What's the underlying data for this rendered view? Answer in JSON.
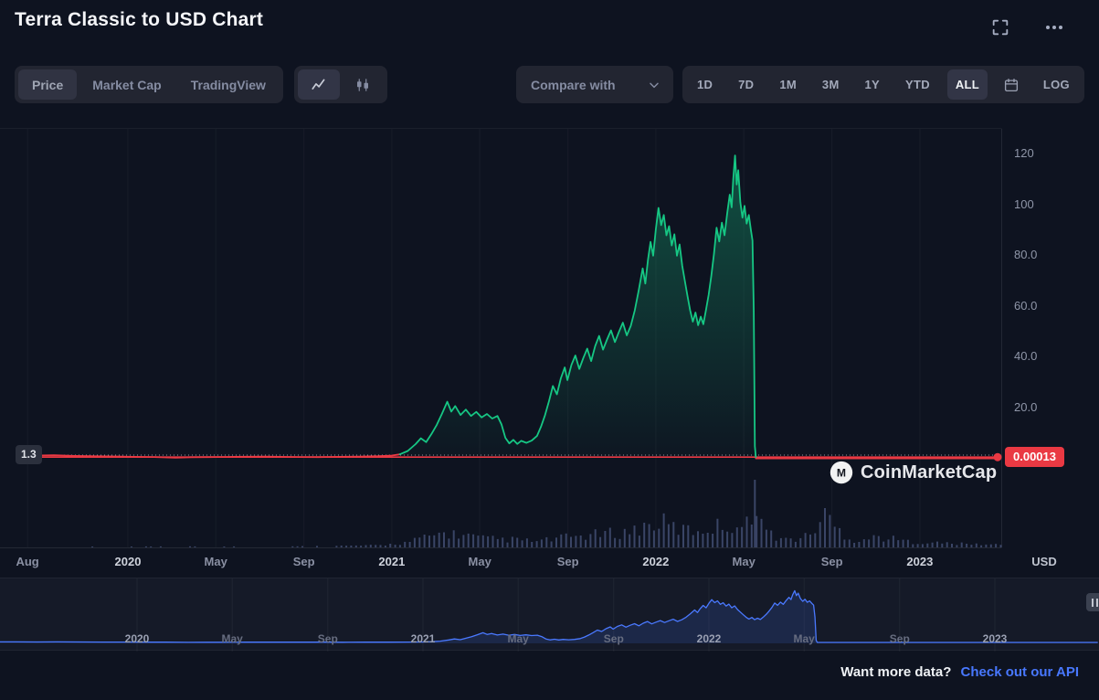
{
  "header": {
    "title": "Terra Classic to USD Chart"
  },
  "toolbar": {
    "view_tabs": [
      {
        "label": "Price",
        "active": true
      },
      {
        "label": "Market Cap",
        "active": false
      },
      {
        "label": "TradingView",
        "active": false
      }
    ],
    "chart_types": [
      {
        "name": "line",
        "active": true
      },
      {
        "name": "candlestick",
        "active": false
      }
    ],
    "compare_label": "Compare with",
    "ranges": [
      {
        "label": "1D",
        "active": false
      },
      {
        "label": "7D",
        "active": false
      },
      {
        "label": "1M",
        "active": false
      },
      {
        "label": "3M",
        "active": false
      },
      {
        "label": "1Y",
        "active": false
      },
      {
        "label": "YTD",
        "active": false
      },
      {
        "label": "ALL",
        "active": true
      }
    ],
    "log_label": "LOG"
  },
  "chart": {
    "unit_label": "USD",
    "start_label": "1.3",
    "price_label": "0.00013",
    "watermark": "CoinMarketCap",
    "y_axis": {
      "ticks": [
        {
          "v": 120,
          "label": "120"
        },
        {
          "v": 100,
          "label": "100"
        },
        {
          "v": 80,
          "label": "80.0"
        },
        {
          "v": 60,
          "label": "60.0"
        },
        {
          "v": 40,
          "label": "40.0"
        },
        {
          "v": 20,
          "label": "20.0"
        }
      ]
    },
    "x_axis": {
      "ticks": [
        {
          "t": 2019.62,
          "label": "Aug",
          "kind": "month"
        },
        {
          "t": 2020.0,
          "label": "2020",
          "kind": "year"
        },
        {
          "t": 2020.333,
          "label": "May",
          "kind": "month"
        },
        {
          "t": 2020.667,
          "label": "Sep",
          "kind": "month"
        },
        {
          "t": 2021.0,
          "label": "2021",
          "kind": "year"
        },
        {
          "t": 2021.333,
          "label": "May",
          "kind": "month"
        },
        {
          "t": 2021.667,
          "label": "Sep",
          "kind": "month"
        },
        {
          "t": 2022.0,
          "label": "2022",
          "kind": "year"
        },
        {
          "t": 2022.333,
          "label": "May",
          "kind": "month"
        },
        {
          "t": 2022.667,
          "label": "Sep",
          "kind": "month"
        },
        {
          "t": 2023.0,
          "label": "2023",
          "kind": "year"
        }
      ]
    }
  },
  "navigator": {
    "ticks": [
      {
        "t": 2020.0,
        "label": "2020",
        "kind": "year"
      },
      {
        "t": 2020.333,
        "label": "May",
        "kind": "month"
      },
      {
        "t": 2020.667,
        "label": "Sep",
        "kind": "month"
      },
      {
        "t": 2021.0,
        "label": "2021",
        "kind": "year"
      },
      {
        "t": 2021.333,
        "label": "May",
        "kind": "month"
      },
      {
        "t": 2021.667,
        "label": "Sep",
        "kind": "month"
      },
      {
        "t": 2022.0,
        "label": "2022",
        "kind": "year"
      },
      {
        "t": 2022.333,
        "label": "May",
        "kind": "month"
      },
      {
        "t": 2022.667,
        "label": "Sep",
        "kind": "month"
      },
      {
        "t": 2023.0,
        "label": "2023",
        "kind": "year"
      }
    ]
  },
  "footer": {
    "prompt": "Want more data?",
    "link": "Check out our API"
  },
  "icons": {
    "fullscreen": "fullscreen-expand-icon",
    "more": "ellipsis-icon",
    "line_chart": "line-chart-icon",
    "candlestick": "candlestick-chart-icon",
    "chevron": "chevron-down-icon",
    "calendar": "calendar-icon",
    "logo": "coinmarketcap-logo-icon",
    "nav_handle": "drag-handle-icon"
  },
  "chart_data": {
    "type": "line",
    "title": "Terra Classic to USD Chart",
    "ylabel": "USD",
    "x_unit": "decimal_year",
    "x_domain": [
      2019.578,
      2023.31
    ],
    "y_ticks": [
      20,
      40,
      60,
      80,
      100,
      120
    ],
    "start_value": 1.3,
    "current_value": 0.00013,
    "legend": "off",
    "grid": "faint-vertical",
    "colors": {
      "up": "#16c784",
      "down": "#ea3943",
      "volume": "#3a4566",
      "navigator": "#4a79ff"
    },
    "series": [
      {
        "name": "Terra Classic price (USD)",
        "points": [
          [
            2019.578,
            1.3
          ],
          [
            2019.65,
            1.12
          ],
          [
            2019.72,
            1.22
          ],
          [
            2019.8,
            0.98
          ],
          [
            2019.88,
            0.84
          ],
          [
            2019.95,
            0.74
          ],
          [
            2020.02,
            0.62
          ],
          [
            2020.1,
            0.54
          ],
          [
            2020.18,
            0.3
          ],
          [
            2020.24,
            0.46
          ],
          [
            2020.3,
            0.52
          ],
          [
            2020.38,
            0.58
          ],
          [
            2020.45,
            0.66
          ],
          [
            2020.52,
            0.72
          ],
          [
            2020.58,
            0.62
          ],
          [
            2020.65,
            0.55
          ],
          [
            2020.72,
            0.51
          ],
          [
            2020.8,
            0.62
          ],
          [
            2020.88,
            0.7
          ],
          [
            2020.95,
            0.86
          ],
          [
            2021.0,
            1.1
          ],
          [
            2021.03,
            1.6
          ],
          [
            2021.06,
            2.9
          ],
          [
            2021.09,
            5.6
          ],
          [
            2021.11,
            7.9
          ],
          [
            2021.13,
            6.4
          ],
          [
            2021.15,
            9.6
          ],
          [
            2021.17,
            13.2
          ],
          [
            2021.19,
            17.6
          ],
          [
            2021.21,
            22.3
          ],
          [
            2021.225,
            18.4
          ],
          [
            2021.24,
            20.6
          ],
          [
            2021.26,
            17.1
          ],
          [
            2021.28,
            19.2
          ],
          [
            2021.3,
            16.7
          ],
          [
            2021.32,
            18.3
          ],
          [
            2021.34,
            16.1
          ],
          [
            2021.36,
            17.5
          ],
          [
            2021.38,
            15.7
          ],
          [
            2021.4,
            16.7
          ],
          [
            2021.415,
            13.4
          ],
          [
            2021.43,
            8.1
          ],
          [
            2021.445,
            5.9
          ],
          [
            2021.46,
            7.3
          ],
          [
            2021.475,
            5.7
          ],
          [
            2021.49,
            6.9
          ],
          [
            2021.51,
            6.1
          ],
          [
            2021.53,
            7.0
          ],
          [
            2021.55,
            8.9
          ],
          [
            2021.565,
            12.5
          ],
          [
            2021.58,
            17.0
          ],
          [
            2021.595,
            22.5
          ],
          [
            2021.61,
            28.5
          ],
          [
            2021.625,
            25.2
          ],
          [
            2021.64,
            31.5
          ],
          [
            2021.655,
            35.8
          ],
          [
            2021.665,
            30.8
          ],
          [
            2021.68,
            36.8
          ],
          [
            2021.695,
            40.5
          ],
          [
            2021.71,
            35.2
          ],
          [
            2021.725,
            39.5
          ],
          [
            2021.74,
            43.2
          ],
          [
            2021.755,
            38.3
          ],
          [
            2021.77,
            44.2
          ],
          [
            2021.785,
            48.2
          ],
          [
            2021.8,
            42.8
          ],
          [
            2021.815,
            46.8
          ],
          [
            2021.83,
            50.4
          ],
          [
            2021.845,
            45.8
          ],
          [
            2021.86,
            49.8
          ],
          [
            2021.875,
            53.4
          ],
          [
            2021.89,
            48.4
          ],
          [
            2021.905,
            52.2
          ],
          [
            2021.92,
            58.2
          ],
          [
            2021.935,
            66.0
          ],
          [
            2021.95,
            74.8
          ],
          [
            2021.96,
            68.8
          ],
          [
            2021.97,
            78.2
          ],
          [
            2021.98,
            85.2
          ],
          [
            2021.99,
            79.8
          ],
          [
            2022.0,
            90.2
          ],
          [
            2022.01,
            98.6
          ],
          [
            2022.02,
            91.8
          ],
          [
            2022.03,
            95.8
          ],
          [
            2022.04,
            87.8
          ],
          [
            2022.05,
            91.4
          ],
          [
            2022.06,
            83.8
          ],
          [
            2022.07,
            88.2
          ],
          [
            2022.08,
            79.8
          ],
          [
            2022.09,
            84.2
          ],
          [
            2022.1,
            75.8
          ],
          [
            2022.11,
            69.8
          ],
          [
            2022.12,
            63.8
          ],
          [
            2022.13,
            58.2
          ],
          [
            2022.14,
            53.8
          ],
          [
            2022.15,
            57.4
          ],
          [
            2022.16,
            52.4
          ],
          [
            2022.17,
            55.8
          ],
          [
            2022.18,
            52.8
          ],
          [
            2022.19,
            58.4
          ],
          [
            2022.2,
            64.4
          ],
          [
            2022.21,
            71.8
          ],
          [
            2022.22,
            80.4
          ],
          [
            2022.23,
            90.8
          ],
          [
            2022.24,
            85.4
          ],
          [
            2022.25,
            92.8
          ],
          [
            2022.26,
            87.8
          ],
          [
            2022.27,
            96.4
          ],
          [
            2022.28,
            103.8
          ],
          [
            2022.287,
            98.8
          ],
          [
            2022.293,
            109.8
          ],
          [
            2022.3,
            119.2
          ],
          [
            2022.306,
            107.8
          ],
          [
            2022.312,
            113.4
          ],
          [
            2022.32,
            100.8
          ],
          [
            2022.328,
            94.8
          ],
          [
            2022.336,
            99.4
          ],
          [
            2022.344,
            92.4
          ],
          [
            2022.352,
            95.8
          ],
          [
            2022.36,
            89.8
          ],
          [
            2022.366,
            85.8
          ],
          [
            2022.371,
            58.0
          ],
          [
            2022.375,
            4.8
          ],
          [
            2022.379,
            0.0002
          ],
          [
            2022.45,
            0.00015
          ],
          [
            2022.6,
            0.00012
          ],
          [
            2022.8,
            0.00014
          ],
          [
            2023.0,
            0.00018
          ],
          [
            2023.15,
            0.00013
          ],
          [
            2023.3,
            0.00013
          ]
        ]
      }
    ],
    "volume_envelope": [
      [
        2019.6,
        0.01
      ],
      [
        2020.6,
        0.012
      ],
      [
        2020.95,
        0.03
      ],
      [
        2021.05,
        0.07
      ],
      [
        2021.12,
        0.14
      ],
      [
        2021.2,
        0.22
      ],
      [
        2021.28,
        0.18
      ],
      [
        2021.35,
        0.13
      ],
      [
        2021.45,
        0.12
      ],
      [
        2021.55,
        0.09
      ],
      [
        2021.62,
        0.13
      ],
      [
        2021.7,
        0.17
      ],
      [
        2021.8,
        0.2
      ],
      [
        2021.9,
        0.24
      ],
      [
        2021.97,
        0.33
      ],
      [
        2022.02,
        0.38
      ],
      [
        2022.08,
        0.28
      ],
      [
        2022.15,
        0.25
      ],
      [
        2022.22,
        0.31
      ],
      [
        2022.29,
        0.35
      ],
      [
        2022.34,
        0.3
      ],
      [
        2022.36,
        0.5
      ],
      [
        2022.375,
        1.0
      ],
      [
        2022.39,
        0.42
      ],
      [
        2022.43,
        0.2
      ],
      [
        2022.5,
        0.11
      ],
      [
        2022.58,
        0.17
      ],
      [
        2022.64,
        0.5
      ],
      [
        2022.68,
        0.3
      ],
      [
        2022.75,
        0.1
      ],
      [
        2022.85,
        0.16
      ],
      [
        2022.95,
        0.09
      ],
      [
        2023.05,
        0.07
      ],
      [
        2023.18,
        0.05
      ],
      [
        2023.3,
        0.04
      ]
    ]
  }
}
